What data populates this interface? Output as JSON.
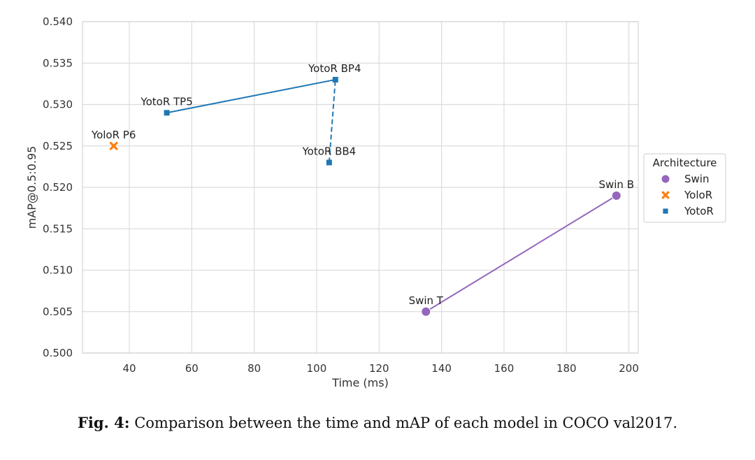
{
  "chart_data": {
    "type": "scatter",
    "xlabel": "Time (ms)",
    "ylabel": "mAP@0.5:0.95",
    "xlim": [
      25,
      203
    ],
    "ylim": [
      0.5,
      0.54
    ],
    "xticks": [
      40,
      60,
      80,
      100,
      120,
      140,
      160,
      180,
      200
    ],
    "yticks": [
      0.5,
      0.505,
      0.51,
      0.515,
      0.52,
      0.525,
      0.53,
      0.535,
      0.54
    ],
    "grid": true,
    "legend_position": "right",
    "legend_title": "Architecture",
    "series": [
      {
        "name": "Swin",
        "color": "#9467bd",
        "marker": "circle",
        "points": [
          {
            "label": "Swin T",
            "x": 135,
            "y": 0.505
          },
          {
            "label": "Swin B",
            "x": 196,
            "y": 0.519
          }
        ]
      },
      {
        "name": "YoloR",
        "color": "#ff7f0e",
        "marker": "x",
        "points": [
          {
            "label": "YoloR P6",
            "x": 35,
            "y": 0.525
          }
        ]
      },
      {
        "name": "YotoR",
        "color": "#1f77b4",
        "marker": "square",
        "points": [
          {
            "label": "YotoR TP5",
            "x": 52,
            "y": 0.529
          },
          {
            "label": "YotoR BP4",
            "x": 106,
            "y": 0.533
          },
          {
            "label": "YotoR BB4",
            "x": 104,
            "y": 0.523
          }
        ]
      }
    ],
    "lines": [
      {
        "series": "Swin",
        "from": "Swin T",
        "to": "Swin B",
        "style": "solid"
      },
      {
        "series": "YotoR",
        "from": "YotoR TP5",
        "to": "YotoR BP4",
        "style": "solid"
      },
      {
        "series": "YotoR",
        "from": "YotoR BB4",
        "to": "YotoR BP4",
        "style": "dashed"
      }
    ]
  },
  "caption": {
    "prefix": "Fig. 4:",
    "text": " Comparison between the time and mAP of each model in COCO val2017."
  }
}
